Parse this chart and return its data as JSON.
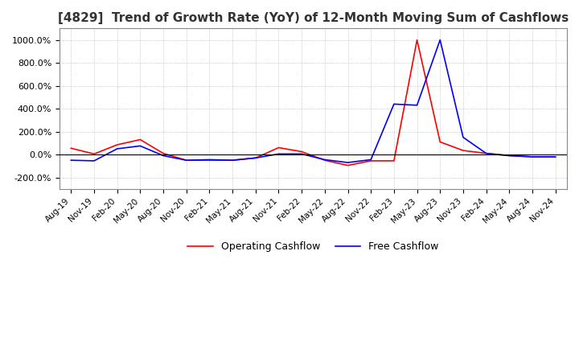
{
  "title": "[4829]  Trend of Growth Rate (YoY) of 12-Month Moving Sum of Cashflows",
  "title_fontsize": 11,
  "ylim": [
    -300,
    1100
  ],
  "yticks": [
    -200,
    0,
    200,
    400,
    600,
    800,
    1000
  ],
  "ytick_labels": [
    "-200.0%",
    "0.0%",
    "200.0%",
    "400.0%",
    "600.0%",
    "800.0%",
    "1000.0%"
  ],
  "legend_labels": [
    "Operating Cashflow",
    "Free Cashflow"
  ],
  "legend_colors": [
    "#ff0000",
    "#0000ff"
  ],
  "bg_color": "#ffffff",
  "grid_color": "#aaaaaa",
  "x_labels": [
    "Aug-19",
    "Nov-19",
    "Feb-20",
    "May-20",
    "Aug-20",
    "Nov-20",
    "Feb-21",
    "May-21",
    "Aug-21",
    "Nov-21",
    "Feb-22",
    "May-22",
    "Aug-22",
    "Nov-22",
    "Feb-23",
    "May-23",
    "Aug-23",
    "Nov-23",
    "Feb-24",
    "May-24",
    "Aug-24",
    "Nov-24"
  ],
  "operating_cashflow": [
    55,
    5,
    85,
    130,
    10,
    -50,
    -50,
    -50,
    -30,
    60,
    25,
    -50,
    -95,
    -55,
    -55,
    1000,
    110,
    35,
    10,
    -10,
    -20,
    -20
  ],
  "free_cashflow": [
    -50,
    -55,
    50,
    75,
    -10,
    -50,
    -45,
    -50,
    -30,
    5,
    5,
    -45,
    -70,
    -45,
    440,
    430,
    1000,
    150,
    10,
    -10,
    -20,
    -20
  ]
}
